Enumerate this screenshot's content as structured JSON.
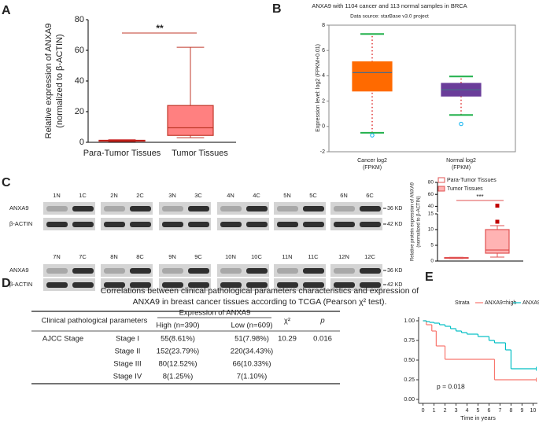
{
  "panels": [
    "A",
    "B",
    "C",
    "D",
    "E"
  ],
  "chart_data": [
    {
      "type": "box",
      "ylabel": [
        "Relative expression of ANXA9",
        "(normalized to β-ACTIN)"
      ],
      "categories": [
        "Para-Tumor Tissues",
        "Tumor Tissues"
      ],
      "boxes": [
        {
          "min": 0.6,
          "q1": 0.8,
          "median": 1,
          "q3": 1.3,
          "max": 1.6
        },
        {
          "min": 3,
          "q1": 4.5,
          "median": 9.5,
          "q3": 24,
          "max": 62
        }
      ],
      "colors": [
        "#c00000",
        "#ff8080"
      ],
      "edge_colors": [
        "#c00000",
        "#c0392b"
      ],
      "median_color": "#c0392b",
      "ylim": [
        0,
        80
      ],
      "yticks": [
        0,
        20,
        40,
        60,
        80
      ],
      "annotation": "**"
    },
    {
      "type": "box",
      "title": "ANXA9 with 1104 cancer and 113 normal samples in BRCA",
      "subtitle": "Data source: starBase v3.0 project",
      "ylabel": [
        "Expression level: log2 (FPKM+0.01)"
      ],
      "categories": [
        [
          "Cancer log2",
          "(FPKM)"
        ],
        [
          "Normal log2",
          "(FPKM)"
        ]
      ],
      "boxes": [
        {
          "min": -0.5,
          "q1": 2.8,
          "median": 4.25,
          "q3": 5.1,
          "max": 7.3,
          "outliers": [
            -0.7
          ]
        },
        {
          "min": 0.9,
          "q1": 2.4,
          "median": 2.9,
          "q3": 3.4,
          "max": 3.95,
          "outliers": [
            0.2
          ]
        }
      ],
      "colors": [
        "#ff6a00",
        "#6a3d9a"
      ],
      "edge_colors": [
        "#ff6a00",
        "#6a3d9a"
      ],
      "median_color": "#4a6a8a",
      "whisker_color": "#e03030",
      "cap_color": "#22b14c",
      "outlier_color": "#00aeef",
      "ylim": [
        -2,
        8
      ],
      "yticks": [
        -2,
        0,
        2,
        4,
        6,
        8
      ]
    },
    {
      "type": "box",
      "ylabel": [
        "Relative protein expression of ANXA9",
        "(normalized to β-ACTIN)"
      ],
      "legend": [
        "Para-Tumor Tissues",
        "Tumor Tissues"
      ],
      "boxes": [
        {
          "min": 0.8,
          "q1": 0.9,
          "median": 1,
          "q3": 1.1,
          "max": 1.2
        },
        {
          "min": 1.25,
          "q1": 2.5,
          "median": 3.5,
          "q3": 10,
          "max": 11.25,
          "outliers": [
            12.5,
            41
          ]
        }
      ],
      "colors": [
        "#ffffff",
        "#ffb3b3"
      ],
      "edge_colors": [
        "#e05050",
        "#e05050"
      ],
      "median_color": "#e05050",
      "outlier_color": "#c00000",
      "ylim": [
        0,
        80
      ],
      "ybreak": [
        15,
        30
      ],
      "yticks": [
        0,
        5,
        10,
        15,
        40,
        60,
        80
      ],
      "annotation": "***"
    },
    {
      "type": "line",
      "title": "Strata",
      "xlabel": "Time in years",
      "annotation": "p = 0.018",
      "series": [
        {
          "name": "ANXA9=high",
          "color": "#f8766d",
          "x": [
            0,
            0.3,
            0.8,
            1.2,
            2,
            6.5,
            10.3
          ],
          "values": [
            1,
            0.95,
            0.87,
            0.68,
            0.51,
            0.25,
            0.25
          ]
        },
        {
          "name": "ANXA9=low",
          "color": "#00bfc4",
          "x": [
            0,
            0.3,
            0.6,
            1,
            1.5,
            2,
            2.5,
            3,
            3.5,
            4,
            5,
            6,
            6.5,
            7.5,
            8,
            10.3
          ],
          "values": [
            1,
            0.99,
            0.98,
            0.97,
            0.95,
            0.93,
            0.9,
            0.87,
            0.85,
            0.83,
            0.8,
            0.75,
            0.72,
            0.63,
            0.39,
            0.39
          ]
        }
      ],
      "xlim": [
        -0.4,
        10.4
      ],
      "xticks": [
        0,
        1,
        2,
        3,
        4,
        5,
        6,
        7,
        8,
        9,
        10
      ],
      "ylim": [
        -0.05,
        1.05
      ],
      "yticks": [
        {
          "value": 0,
          "label": "0.00"
        },
        {
          "value": 0.25,
          "label": "0.25"
        },
        {
          "value": 0.5,
          "label": "0.50"
        },
        {
          "value": 0.75,
          "label": "0.75"
        },
        {
          "value": 1,
          "label": "1.00"
        }
      ]
    }
  ],
  "blot": {
    "proteins": [
      "ANXA9",
      "β-ACTIN"
    ],
    "sizes": [
      "36 KD",
      "42 KD"
    ],
    "lanes": [
      "1N",
      "1C",
      "2N",
      "2C",
      "3N",
      "3C",
      "4N",
      "4C",
      "5N",
      "5C",
      "6N",
      "6C",
      "7N",
      "7C",
      "8N",
      "8C",
      "9N",
      "9C",
      "10N",
      "10C",
      "11N",
      "11C",
      "12N",
      "12C"
    ]
  },
  "table": {
    "title": [
      "Correlations between clinical pathological parameters characteristics and expression of",
      "ANXA9 in breast cancer tissues according to TCGA (Pearson χ² test)."
    ],
    "group_header": "Expression of ANXA9",
    "columns": [
      "Clinical pathological parameters",
      "High (n=390)",
      "Low (n=609)",
      "χ²",
      "p"
    ],
    "row_group": "AJCC Stage",
    "rows": [
      [
        "Stage I",
        "55(8.61%)",
        "51(7.98%)",
        "10.29",
        "0.016"
      ],
      [
        "Stage II",
        "152(23.79%)",
        "220(34.43%)"
      ],
      [
        "Stage III",
        "80(12.52%)",
        "66(10.33%)"
      ],
      [
        "Stage IV",
        "8(1.25%)",
        "7(1.10%)"
      ]
    ]
  }
}
